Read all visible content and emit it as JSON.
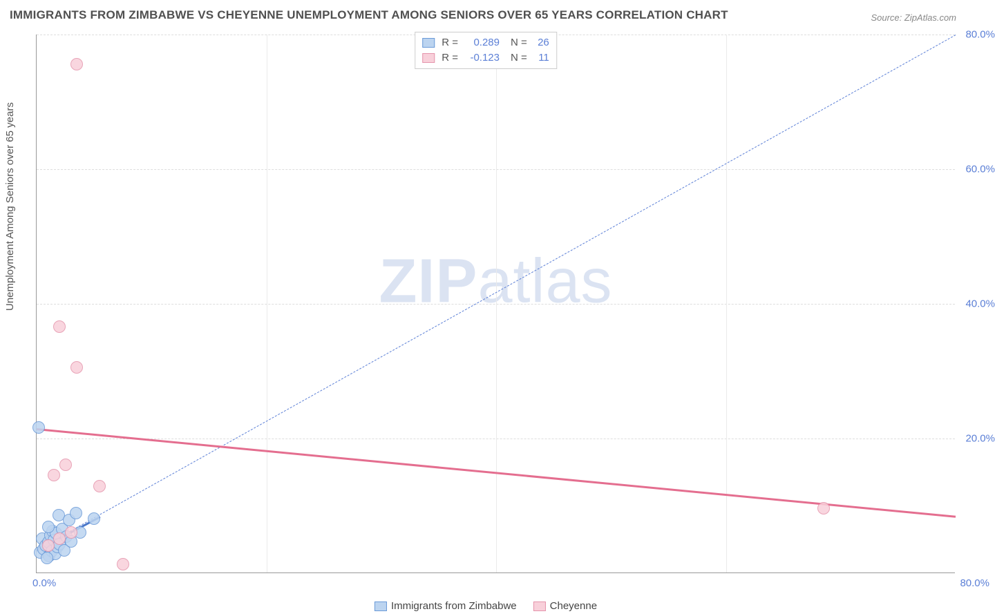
{
  "title": "IMMIGRANTS FROM ZIMBABWE VS CHEYENNE UNEMPLOYMENT AMONG SENIORS OVER 65 YEARS CORRELATION CHART",
  "source": "Source: ZipAtlas.com",
  "ylabel": "Unemployment Among Seniors over 65 years",
  "watermark_a": "ZIP",
  "watermark_b": "atlas",
  "chart": {
    "type": "scatter",
    "xlim": [
      0,
      80
    ],
    "ylim": [
      0,
      80
    ],
    "ytick_labels": [
      "20.0%",
      "40.0%",
      "60.0%",
      "80.0%"
    ],
    "ytick_values": [
      20,
      40,
      60,
      80
    ],
    "x_min_label": "0.0%",
    "x_max_label": "80.0%",
    "vgrid_values": [
      20,
      40,
      60
    ],
    "background_color": "#ffffff",
    "grid_color": "#dddddd",
    "axis_color": "#999999",
    "tick_text_color": "#5b7fd6",
    "title_color": "#505050",
    "title_fontsize": 17,
    "label_fontsize": 15,
    "tick_fontsize": 15,
    "point_radius": 9
  },
  "series": [
    {
      "name": "Immigrants from Zimbabwe",
      "fill": "#bcd4f0",
      "stroke": "#6a9ad8",
      "r_label": "R =",
      "r_value": "0.289",
      "n_label": "N =",
      "n_value": "26",
      "trend": {
        "x1": 0,
        "y1": 3.5,
        "x2": 80,
        "y2": 80,
        "color": "#5b7fd6",
        "dash": true,
        "width": 1.5
      },
      "trend_solid": {
        "x1": 0,
        "y1": 3.5,
        "x2": 5.5,
        "y2": 8.5,
        "color": "#4a77c9",
        "dash": false,
        "width": 3
      },
      "points": [
        {
          "x": 0.2,
          "y": 21.5
        },
        {
          "x": 0.3,
          "y": 3.0
        },
        {
          "x": 0.5,
          "y": 5.0
        },
        {
          "x": 0.6,
          "y": 3.5
        },
        {
          "x": 0.8,
          "y": 4.0
        },
        {
          "x": 1.0,
          "y": 4.5
        },
        {
          "x": 1.1,
          "y": 2.5
        },
        {
          "x": 1.2,
          "y": 5.5
        },
        {
          "x": 1.3,
          "y": 3.2
        },
        {
          "x": 1.4,
          "y": 6.2
        },
        {
          "x": 1.5,
          "y": 4.8
        },
        {
          "x": 1.6,
          "y": 2.8
        },
        {
          "x": 1.7,
          "y": 5.8
        },
        {
          "x": 1.8,
          "y": 3.8
        },
        {
          "x": 1.9,
          "y": 8.5
        },
        {
          "x": 2.0,
          "y": 4.2
        },
        {
          "x": 2.2,
          "y": 6.5
        },
        {
          "x": 2.4,
          "y": 3.3
        },
        {
          "x": 2.6,
          "y": 5.3
        },
        {
          "x": 2.8,
          "y": 7.8
        },
        {
          "x": 3.0,
          "y": 4.6
        },
        {
          "x": 3.4,
          "y": 8.8
        },
        {
          "x": 3.8,
          "y": 6.0
        },
        {
          "x": 5.0,
          "y": 8.0
        },
        {
          "x": 1.0,
          "y": 6.8
        },
        {
          "x": 0.9,
          "y": 2.2
        }
      ]
    },
    {
      "name": "Cheyenne",
      "fill": "#f8d0da",
      "stroke": "#e593ab",
      "r_label": "R =",
      "r_value": "-0.123",
      "n_label": "N =",
      "n_value": "11",
      "trend": {
        "x1": 0,
        "y1": 21.5,
        "x2": 80,
        "y2": 8.5,
        "color": "#e46e8f",
        "dash": false,
        "width": 3
      },
      "points": [
        {
          "x": 3.5,
          "y": 75.5
        },
        {
          "x": 2.0,
          "y": 36.5
        },
        {
          "x": 3.5,
          "y": 30.5
        },
        {
          "x": 2.5,
          "y": 16.0
        },
        {
          "x": 1.5,
          "y": 14.5
        },
        {
          "x": 5.5,
          "y": 12.8
        },
        {
          "x": 7.5,
          "y": 1.2
        },
        {
          "x": 68.5,
          "y": 9.5
        },
        {
          "x": 1.0,
          "y": 4.0
        },
        {
          "x": 2.0,
          "y": 5.0
        },
        {
          "x": 3.0,
          "y": 6.0
        }
      ]
    }
  ],
  "legend_bottom": {
    "items": [
      {
        "label": "Immigrants from Zimbabwe",
        "fill": "#bcd4f0",
        "stroke": "#6a9ad8"
      },
      {
        "label": "Cheyenne",
        "fill": "#f8d0da",
        "stroke": "#e593ab"
      }
    ]
  }
}
